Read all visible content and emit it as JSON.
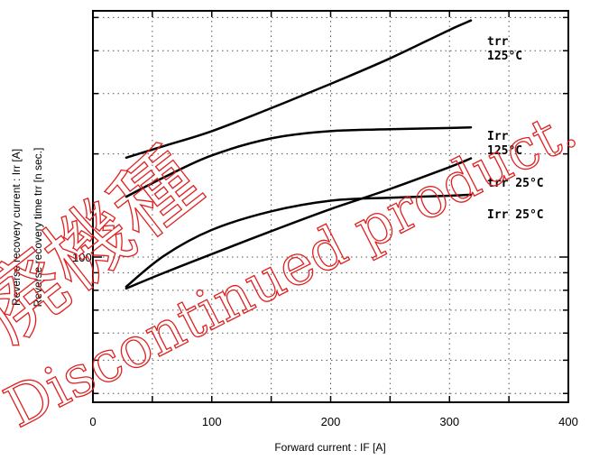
{
  "chart_data": {
    "type": "line",
    "xlabel": "Forward current  :  IF [A]",
    "ylabel_line1": "Reverse recovery  current  :  Irr  [A]",
    "ylabel_line2": "Reverse recovery  time    trr [n sec.]",
    "xlim": [
      0,
      400
    ],
    "x_ticks": [
      "0",
      "100",
      "200",
      "300",
      "400"
    ],
    "y_scale": "log",
    "y_tick_label": "100",
    "grid": true,
    "series": [
      {
        "name": "trr\n125°C",
        "label_lines": [
          "trr",
          "125°C"
        ],
        "x": [
          28,
          60,
          100,
          150,
          200,
          250,
          300,
          318
        ],
        "y": [
          195,
          211,
          233,
          272,
          320,
          380,
          460,
          490
        ]
      },
      {
        "name": "Irr\n125°C",
        "label_lines": [
          "Irr",
          "125°C"
        ],
        "x": [
          28,
          60,
          100,
          150,
          200,
          250,
          300,
          318
        ],
        "y": [
          150,
          171,
          198,
          222,
          233,
          236,
          238,
          239
        ]
      },
      {
        "name": "trr 25°C",
        "label_lines": [
          "trr 25°C"
        ],
        "x": [
          28,
          60,
          100,
          150,
          200,
          250,
          300,
          318
        ],
        "y": [
          81,
          90,
          102,
          119,
          138,
          158,
          183,
          194
        ]
      },
      {
        "name": "Irr 25°C",
        "label_lines": [
          "Irr 25°C"
        ],
        "x": [
          28,
          60,
          100,
          150,
          200,
          250,
          300,
          318
        ],
        "y": [
          82,
          101,
          120,
          136,
          146,
          149,
          151,
          152
        ]
      }
    ]
  },
  "watermark": {
    "lines": [
      "廃機種",
      "Discontinued product."
    ],
    "color": "#e02020"
  }
}
